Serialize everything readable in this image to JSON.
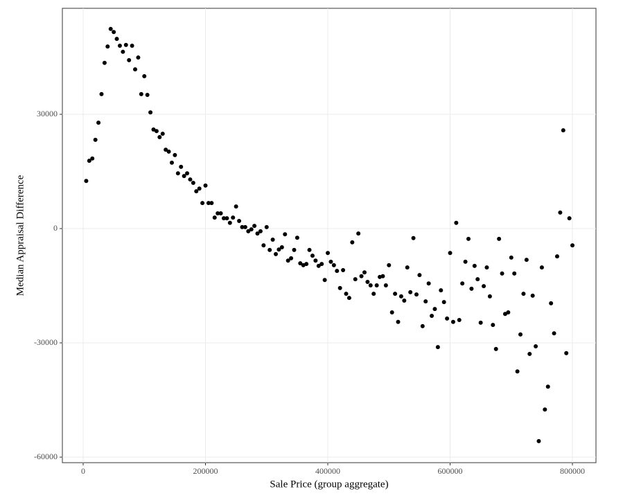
{
  "chart_data": {
    "type": "scatter",
    "x_label": "Sale Price (group aggregate)",
    "y_label": "Median Appraisal Difference",
    "color": "#000000",
    "grid": true,
    "xlim": [
      -34000,
      838500
    ],
    "ylim": [
      -61450,
      57820
    ],
    "xticks": [
      0,
      200000,
      400000,
      600000,
      800000
    ],
    "yticks": [
      -60000,
      -30000,
      0,
      30000
    ],
    "x": [
      5000,
      10000,
      15000,
      20000,
      25000,
      30000,
      35000,
      40000,
      45000,
      50000,
      55000,
      60000,
      65000,
      70000,
      75000,
      80000,
      85000,
      90000,
      95000,
      100000,
      105000,
      110000,
      115000,
      120000,
      125000,
      130000,
      135000,
      140000,
      145000,
      150000,
      155000,
      160000,
      165000,
      170000,
      175000,
      180000,
      185000,
      190000,
      195000,
      200000,
      205000,
      210000,
      215000,
      220000,
      225000,
      230000,
      235000,
      240000,
      245000,
      250000,
      255000,
      260000,
      265000,
      270000,
      275000,
      280000,
      285000,
      290000,
      295000,
      300000,
      305000,
      310000,
      315000,
      320000,
      325000,
      330000,
      335000,
      340000,
      345000,
      350000,
      355000,
      360000,
      365000,
      370000,
      375000,
      380000,
      385000,
      390000,
      395000,
      400000,
      405000,
      410000,
      415000,
      420000,
      425000,
      430000,
      435000,
      440000,
      445000,
      450000,
      455000,
      460000,
      465000,
      470000,
      475000,
      480000,
      485000,
      490000,
      495000,
      500000,
      505000,
      510000,
      515000,
      520000,
      525000,
      530000,
      535000,
      540000,
      545000,
      550000,
      555000,
      560000,
      565000,
      570000,
      575000,
      580000,
      585000,
      590000,
      595000,
      600000,
      605000,
      610000,
      615000,
      620000,
      625000,
      630000,
      635000,
      640000,
      645000,
      650000,
      655000,
      660000,
      665000,
      670000,
      675000,
      680000,
      685000,
      690000,
      695000,
      700000,
      705000,
      710000,
      715000,
      720000,
      725000,
      730000,
      735000,
      740000,
      745000,
      750000,
      755000,
      760000,
      765000,
      770000,
      775000,
      780000,
      785000,
      790000,
      795000,
      800000
    ],
    "y": [
      12500,
      17800,
      18400,
      23300,
      27800,
      35300,
      43500,
      47800,
      52400,
      51600,
      49800,
      48000,
      46400,
      48200,
      44200,
      48000,
      41800,
      44900,
      35300,
      40000,
      35100,
      30500,
      26000,
      25600,
      24000,
      24900,
      20700,
      20200,
      17300,
      19300,
      14500,
      16200,
      13800,
      14500,
      12900,
      12000,
      9800,
      10500,
      6700,
      11300,
      6700,
      6700,
      2900,
      4000,
      4000,
      2700,
      2700,
      1500,
      2900,
      5800,
      2000,
      400,
      400,
      -700,
      -200,
      700,
      -1300,
      -700,
      -4400,
      400,
      -5600,
      -2900,
      -6700,
      -5500,
      -4900,
      -1500,
      -8400,
      -7800,
      -5600,
      -2400,
      -9100,
      -9600,
      -9300,
      -5600,
      -7100,
      -8400,
      -9800,
      -9300,
      -13500,
      -6400,
      -8700,
      -9600,
      -11100,
      -15600,
      -10900,
      -17100,
      -18200,
      -3600,
      -13300,
      -1300,
      -12500,
      -11500,
      -14000,
      -14900,
      -17100,
      -14900,
      -12700,
      -12500,
      -14900,
      -9600,
      -22000,
      -17100,
      -24500,
      -17800,
      -18900,
      -10200,
      -16700,
      -2500,
      -17300,
      -12200,
      -25600,
      -19100,
      -14400,
      -22900,
      -21100,
      -31100,
      -16200,
      -19300,
      -23600,
      -6400,
      -24500,
      1500,
      -24000,
      -14400,
      -8700,
      -2700,
      -15800,
      -9800,
      -13300,
      -24700,
      -15100,
      -10200,
      -17800,
      -25300,
      -31600,
      -2700,
      -11800,
      -22400,
      -22000,
      -7600,
      -11800,
      -37500,
      -27800,
      -17100,
      -8200,
      -32900,
      -17600,
      -30900,
      -55800,
      -10200,
      -47500,
      -41500,
      -19600,
      -27500,
      -7300,
      4200,
      25800,
      -32700,
      2700,
      -4400
    ]
  }
}
